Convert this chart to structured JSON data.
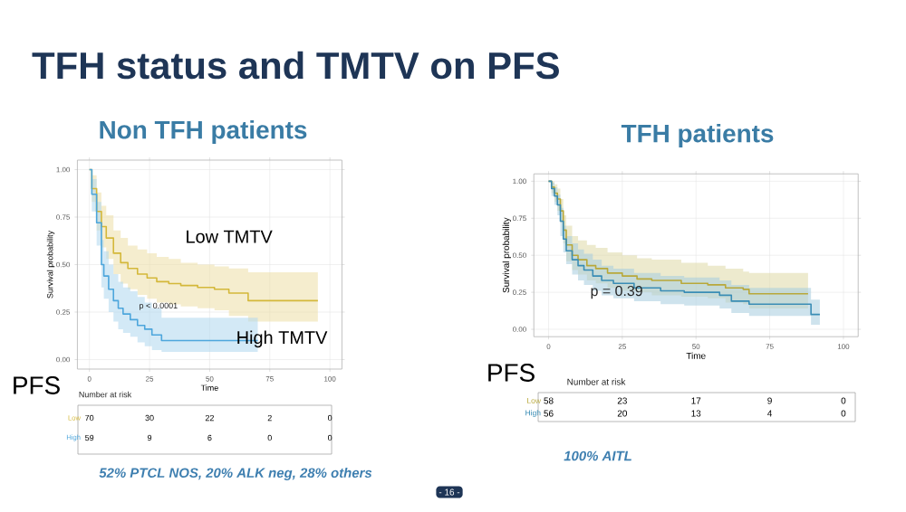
{
  "chart_data": [
    {
      "type": "step",
      "title": "Non TFH patients",
      "xlabel": "Time",
      "ylabel": "Survival probability",
      "xlim": [
        -5,
        105
      ],
      "ylim": [
        -0.05,
        1.05
      ],
      "xticks": [
        0,
        25,
        50,
        75,
        100
      ],
      "yticks": [
        {
          "value": 0,
          "label": "0.00"
        },
        {
          "value": 0.25,
          "label": "0.25"
        },
        {
          "value": 0.5,
          "label": "0.50"
        },
        {
          "value": 0.75,
          "label": "0.75"
        },
        {
          "value": 1,
          "label": "1.00"
        }
      ],
      "grid": true,
      "series": [
        {
          "name": "Low TMTV",
          "color": "#d4b83a",
          "x": [
            0,
            1,
            3,
            5,
            7,
            10,
            13,
            16,
            20,
            24,
            28,
            33,
            38,
            45,
            52,
            58,
            66,
            95
          ],
          "values": [
            1,
            0.9,
            0.78,
            0.7,
            0.64,
            0.56,
            0.51,
            0.48,
            0.45,
            0.43,
            0.41,
            0.4,
            0.39,
            0.38,
            0.37,
            0.35,
            0.31,
            0.31
          ],
          "upper": [
            1,
            0.97,
            0.88,
            0.81,
            0.76,
            0.68,
            0.64,
            0.6,
            0.58,
            0.56,
            0.54,
            0.53,
            0.51,
            0.5,
            0.49,
            0.48,
            0.46,
            0.46
          ],
          "lower": [
            1,
            0.83,
            0.68,
            0.59,
            0.53,
            0.45,
            0.4,
            0.37,
            0.34,
            0.32,
            0.3,
            0.29,
            0.28,
            0.27,
            0.26,
            0.23,
            0.2,
            0.2
          ]
        },
        {
          "name": "High TMTV",
          "color": "#4da6dc",
          "x": [
            0,
            1,
            3,
            5,
            6,
            8,
            10,
            12,
            14,
            17,
            20,
            23,
            26,
            30,
            70
          ],
          "values": [
            1,
            0.87,
            0.72,
            0.5,
            0.44,
            0.37,
            0.31,
            0.27,
            0.24,
            0.21,
            0.18,
            0.16,
            0.13,
            0.1,
            0.1
          ],
          "upper": [
            1,
            0.95,
            0.83,
            0.63,
            0.57,
            0.5,
            0.45,
            0.41,
            0.38,
            0.36,
            0.33,
            0.3,
            0.27,
            0.22,
            0.22
          ],
          "lower": [
            1,
            0.78,
            0.6,
            0.38,
            0.32,
            0.25,
            0.2,
            0.16,
            0.14,
            0.12,
            0.09,
            0.07,
            0.05,
            0.04,
            0.04
          ]
        }
      ],
      "annotations": [
        "p < 0.0001",
        "PFS",
        "Number at risk",
        "Low",
        "70",
        "30",
        "22",
        "2",
        "0",
        "High",
        "59",
        "9",
        "6",
        "0",
        "0",
        "52% PTCL NOS, 20% ALK neg, 28% others",
        "TFH status and TMTV on PFS",
        "- 16 -"
      ]
    },
    {
      "type": "step",
      "title": "TFH patients",
      "xlabel": "Time",
      "ylabel": "Survival probability",
      "xlim": [
        -5,
        105
      ],
      "ylim": [
        -0.05,
        1.05
      ],
      "xticks": [
        0,
        25,
        50,
        75,
        100
      ],
      "yticks": [
        {
          "value": 0,
          "label": "0.00"
        },
        {
          "value": 0.25,
          "label": "0.25"
        },
        {
          "value": 0.5,
          "label": "0.50"
        },
        {
          "value": 0.75,
          "label": "0.75"
        },
        {
          "value": 1,
          "label": "1.00"
        }
      ],
      "grid": true,
      "series": [
        {
          "color": "#b8a83a",
          "x": [
            0,
            1,
            2,
            3,
            4,
            5,
            6,
            8,
            10,
            13,
            16,
            20,
            25,
            30,
            35,
            45,
            54,
            60,
            66,
            68,
            88
          ],
          "values": [
            1,
            0.96,
            0.92,
            0.88,
            0.8,
            0.67,
            0.57,
            0.5,
            0.47,
            0.43,
            0.41,
            0.38,
            0.36,
            0.34,
            0.33,
            0.31,
            0.3,
            0.28,
            0.27,
            0.24,
            0.24
          ],
          "upper": [
            1,
            1,
            0.98,
            0.95,
            0.88,
            0.77,
            0.7,
            0.63,
            0.6,
            0.57,
            0.55,
            0.52,
            0.5,
            0.48,
            0.47,
            0.45,
            0.43,
            0.41,
            0.39,
            0.38,
            0.38
          ],
          "lower": [
            1,
            0.92,
            0.86,
            0.8,
            0.72,
            0.58,
            0.46,
            0.4,
            0.37,
            0.33,
            0.31,
            0.28,
            0.26,
            0.25,
            0.23,
            0.22,
            0.21,
            0.18,
            0.17,
            0.14,
            0.14
          ]
        },
        {
          "color": "#3a8db5",
          "x": [
            0,
            1,
            2,
            3,
            4,
            5,
            6,
            8,
            10,
            12,
            15,
            18,
            22,
            29,
            38,
            46,
            58,
            62,
            68,
            89,
            92
          ],
          "values": [
            1,
            0.95,
            0.9,
            0.84,
            0.73,
            0.61,
            0.53,
            0.47,
            0.43,
            0.4,
            0.36,
            0.33,
            0.31,
            0.28,
            0.26,
            0.25,
            0.23,
            0.19,
            0.17,
            0.1,
            0.1
          ],
          "upper": [
            1,
            0.99,
            0.96,
            0.91,
            0.82,
            0.7,
            0.63,
            0.58,
            0.54,
            0.51,
            0.47,
            0.43,
            0.41,
            0.38,
            0.36,
            0.35,
            0.33,
            0.3,
            0.28,
            0.2,
            0.2
          ],
          "lower": [
            1,
            0.9,
            0.84,
            0.77,
            0.63,
            0.52,
            0.44,
            0.37,
            0.33,
            0.3,
            0.26,
            0.23,
            0.21,
            0.19,
            0.17,
            0.16,
            0.14,
            0.11,
            0.09,
            0.03,
            0.03
          ]
        }
      ],
      "annotations": [
        "p = 0.39",
        "PFS",
        "Number at risk",
        "Low",
        "58",
        "23",
        "17",
        "9",
        "0",
        "High",
        "56",
        "20",
        "13",
        "4",
        "0",
        "100% AITL"
      ]
    }
  ]
}
